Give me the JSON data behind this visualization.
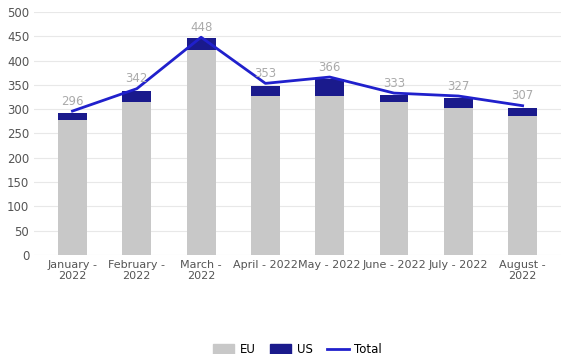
{
  "categories": [
    "January -\n2022",
    "February -\n2022",
    "March -\n2022",
    "April - 2022",
    "May - 2022",
    "June - 2022",
    "July - 2022",
    "August -\n2022"
  ],
  "eu_values": [
    278,
    315,
    422,
    328,
    328,
    315,
    302,
    285
  ],
  "us_values": [
    13,
    22,
    24,
    20,
    35,
    15,
    20,
    17
  ],
  "total_values": [
    296,
    342,
    448,
    353,
    366,
    333,
    327,
    307
  ],
  "eu_color": "#c8c8c8",
  "us_color": "#1a1a8c",
  "total_color": "#2020cc",
  "background_color": "#ffffff",
  "ylim": [
    0,
    500
  ],
  "yticks": [
    0,
    50,
    100,
    150,
    200,
    250,
    300,
    350,
    400,
    450,
    500
  ],
  "legend_eu": "EU",
  "legend_us": "US",
  "legend_total": "Total",
  "annotation_fontsize": 8.5,
  "annotation_color": "#aaaaaa",
  "grid_color": "#e8e8e8",
  "bar_width": 0.45
}
